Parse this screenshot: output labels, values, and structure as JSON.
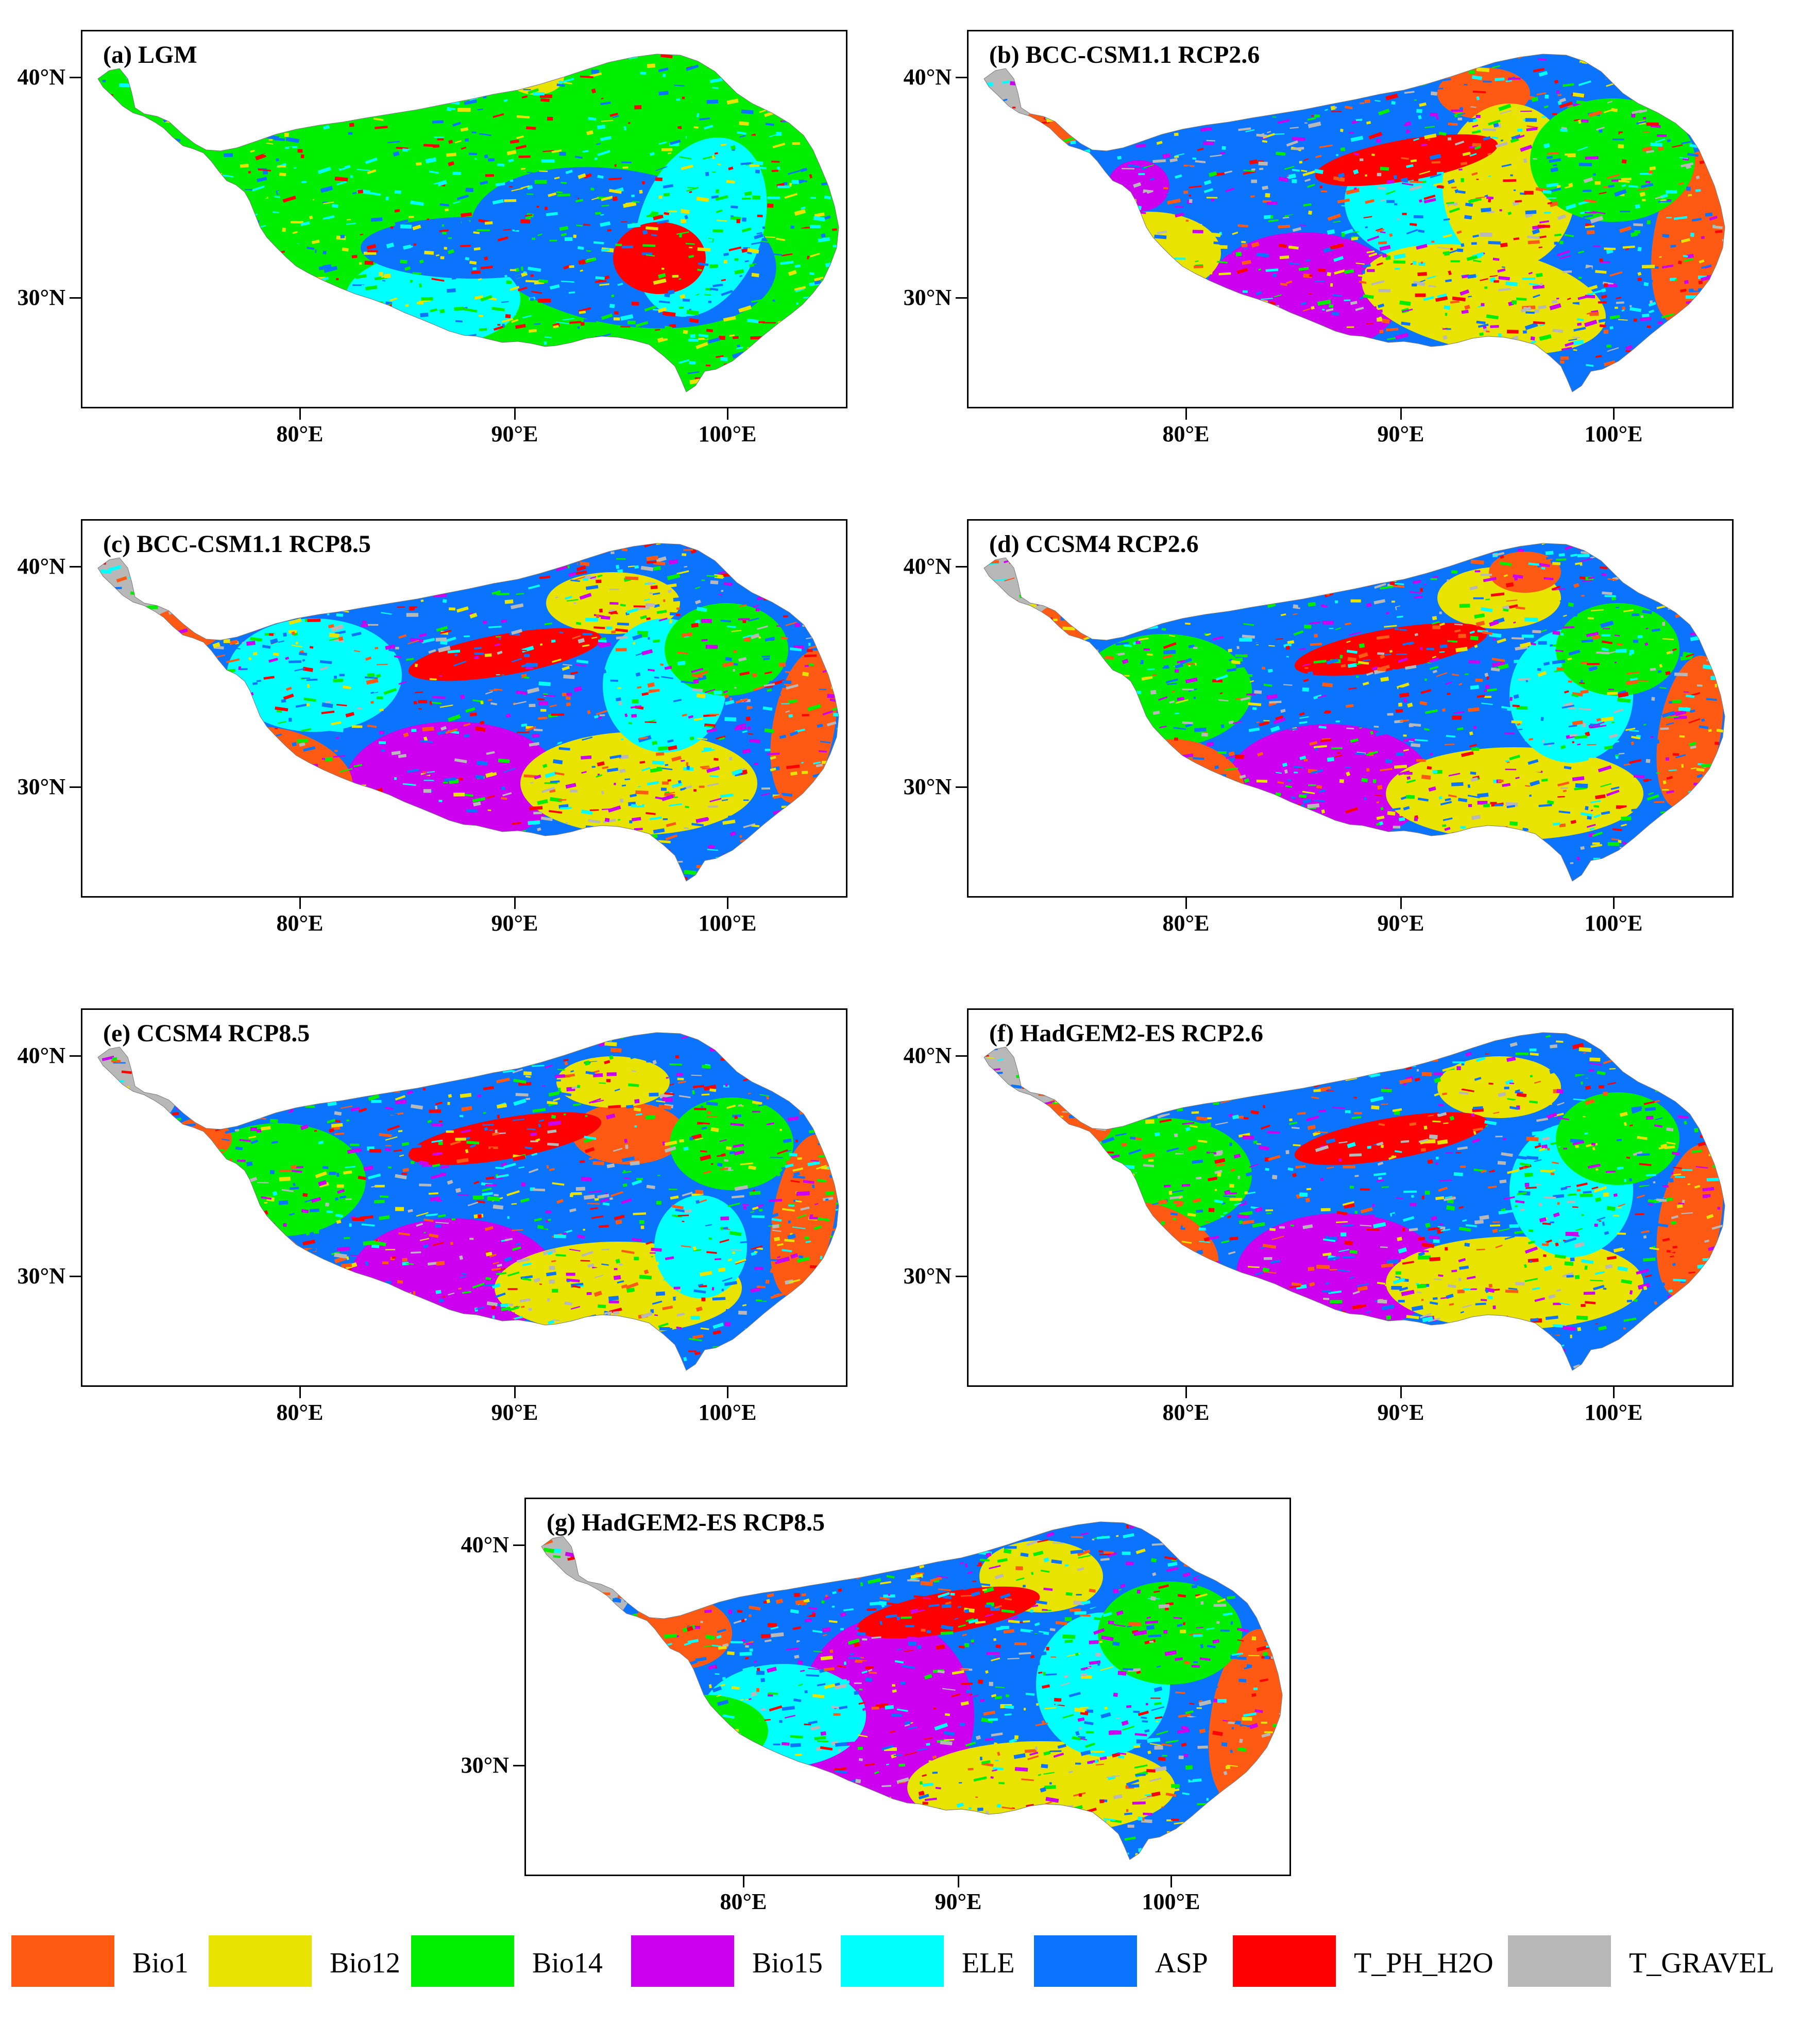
{
  "colors": {
    "Bio1": "#ff5a14",
    "Bio12": "#e8e300",
    "Bio14": "#00ee00",
    "Bio15": "#cc00ee",
    "ELE": "#00ffff",
    "ASP": "#0a74ff",
    "T_PH_H2O": "#ff0000",
    "T_GRAVEL": "#b8b8b8"
  },
  "y_ticks": [
    "40°N",
    "30°N"
  ],
  "x_ticks": [
    "80°E",
    "90°E",
    "100°E"
  ],
  "panels": [
    {
      "id": "a",
      "title": "(a) LGM",
      "dominant": [
        "Bio14",
        "ASP",
        "ELE",
        "Bio12",
        "T_PH_H2O"
      ]
    },
    {
      "id": "b",
      "title": "(b) BCC-CSM1.1 RCP2.6",
      "dominant": [
        "ASP",
        "Bio15",
        "ELE",
        "Bio12",
        "Bio1",
        "T_GRAVEL",
        "Bio14",
        "T_PH_H2O"
      ]
    },
    {
      "id": "c",
      "title": "(c) BCC-CSM1.1 RCP8.5",
      "dominant": [
        "ASP",
        "Bio15",
        "ELE",
        "Bio1",
        "Bio12",
        "T_GRAVEL",
        "Bio14",
        "T_PH_H2O"
      ]
    },
    {
      "id": "d",
      "title": "(d) CCSM4 RCP2.6",
      "dominant": [
        "ASP",
        "Bio15",
        "Bio14",
        "Bio12",
        "Bio1",
        "T_GRAVEL",
        "ELE",
        "T_PH_H2O"
      ]
    },
    {
      "id": "e",
      "title": "(e) CCSM4 RCP8.5",
      "dominant": [
        "ASP",
        "Bio15",
        "Bio14",
        "Bio12",
        "Bio1",
        "T_GRAVEL",
        "ELE",
        "T_PH_H2O"
      ]
    },
    {
      "id": "f",
      "title": "(f) HadGEM2-ES RCP2.6",
      "dominant": [
        "ASP",
        "Bio15",
        "Bio14",
        "Bio12",
        "Bio1",
        "T_GRAVEL",
        "ELE",
        "T_PH_H2O"
      ]
    },
    {
      "id": "g",
      "title": "(g) HadGEM2-ES RCP8.5",
      "dominant": [
        "ASP",
        "Bio15",
        "ELE",
        "Bio14",
        "Bio12",
        "Bio1",
        "T_GRAVEL",
        "T_PH_H2O"
      ]
    }
  ],
  "legend": [
    {
      "key": "Bio1",
      "label": "Bio1"
    },
    {
      "key": "Bio12",
      "label": "Bio12"
    },
    {
      "key": "Bio14",
      "label": "Bio14"
    },
    {
      "key": "Bio15",
      "label": "Bio15"
    },
    {
      "key": "ELE",
      "label": "ELE"
    },
    {
      "key": "ASP",
      "label": "ASP"
    },
    {
      "key": "T_PH_H2O",
      "label": "T_PH_H2O"
    },
    {
      "key": "T_GRAVEL",
      "label": "T_GRAVEL"
    }
  ]
}
